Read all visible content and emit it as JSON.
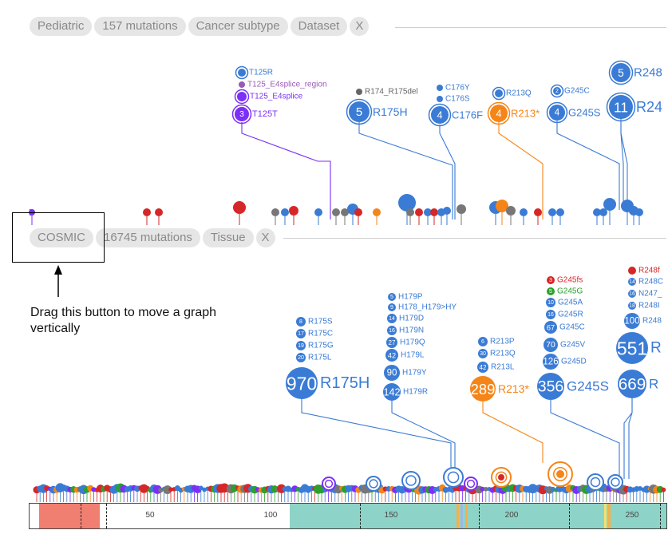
{
  "panel1": {
    "tabs": [
      "Pediatric",
      "157 mutations",
      "Cancer subtype",
      "Dataset",
      "X"
    ],
    "labels": [
      {
        "text": "T125R",
        "color": "#3a7bd5",
        "count": ""
      },
      {
        "text": "T125_E4splice_region",
        "color": "#9b59b6",
        "count": ""
      },
      {
        "text": "T125_E4splice",
        "color": "#7b2ff7",
        "count": ""
      },
      {
        "text": "T125T",
        "color": "#7b2ff7",
        "count": "3"
      },
      {
        "text": "R174_R175del",
        "color": "#666666",
        "count": ""
      },
      {
        "text": "R175H",
        "color": "#3a7bd5",
        "count": "5"
      },
      {
        "text": "C176Y",
        "color": "#3a7bd5",
        "count": ""
      },
      {
        "text": "C176S",
        "color": "#3a7bd5",
        "count": ""
      },
      {
        "text": "C176F",
        "color": "#3a7bd5",
        "count": "4"
      },
      {
        "text": "R213Q",
        "color": "#3a7bd5",
        "count": ""
      },
      {
        "text": "R213*",
        "color": "#f58518",
        "count": "4"
      },
      {
        "text": "G245C",
        "color": "#3a7bd5",
        "count": "2"
      },
      {
        "text": "G245S",
        "color": "#3a7bd5",
        "count": "4"
      },
      {
        "text": "R248",
        "color": "#3a7bd5",
        "count": "5"
      },
      {
        "text": "R24",
        "color": "#3a7bd5",
        "count": "11"
      }
    ]
  },
  "panel2": {
    "tabs": [
      "COSMIC",
      "16745 mutations",
      "Tissue",
      "X"
    ],
    "labels": [
      {
        "text": "R175S",
        "count": "8",
        "color": "#3a7bd5"
      },
      {
        "text": "R175C",
        "count": "17",
        "color": "#3a7bd5"
      },
      {
        "text": "R175G",
        "count": "19",
        "color": "#3a7bd5"
      },
      {
        "text": "R175L",
        "count": "20",
        "color": "#3a7bd5"
      },
      {
        "text": "R175H",
        "count": "970",
        "color": "#3a7bd5"
      },
      {
        "text": "H179P",
        "count": "5",
        "color": "#3a7bd5"
      },
      {
        "text": "H178_H179>HY",
        "count": "9",
        "color": "#3a7bd5"
      },
      {
        "text": "H179D",
        "count": "14",
        "color": "#3a7bd5"
      },
      {
        "text": "H179N",
        "count": "16",
        "color": "#3a7bd5"
      },
      {
        "text": "H179Q",
        "count": "27",
        "color": "#3a7bd5"
      },
      {
        "text": "H179L",
        "count": "42",
        "color": "#3a7bd5"
      },
      {
        "text": "H179Y",
        "count": "90",
        "color": "#3a7bd5"
      },
      {
        "text": "H179R",
        "count": "142",
        "color": "#3a7bd5"
      },
      {
        "text": "R213P",
        "count": "6",
        "color": "#3a7bd5"
      },
      {
        "text": "R213Q",
        "count": "30",
        "color": "#3a7bd5"
      },
      {
        "text": "R213L",
        "count": "42",
        "color": "#3a7bd5"
      },
      {
        "text": "R213*",
        "count": "289",
        "color": "#f58518"
      },
      {
        "text": "G245fs",
        "count": "3",
        "color": "#d62728"
      },
      {
        "text": "G245G",
        "count": "5",
        "color": "#2ca02c"
      },
      {
        "text": "G245A",
        "count": "10",
        "color": "#3a7bd5"
      },
      {
        "text": "G245R",
        "count": "16",
        "color": "#3a7bd5"
      },
      {
        "text": "G245C",
        "count": "67",
        "color": "#3a7bd5"
      },
      {
        "text": "G245V",
        "count": "70",
        "color": "#3a7bd5"
      },
      {
        "text": "G245D",
        "count": "126",
        "color": "#3a7bd5"
      },
      {
        "text": "G245S",
        "count": "356",
        "color": "#3a7bd5"
      },
      {
        "text": "R248f",
        "count": "",
        "color": "#d62728"
      },
      {
        "text": "R248C",
        "count": "14",
        "color": "#3a7bd5"
      },
      {
        "text": "N247_",
        "count": "16",
        "color": "#3a7bd5"
      },
      {
        "text": "R248I",
        "count": "18",
        "color": "#3a7bd5"
      },
      {
        "text": "R248",
        "count": "100",
        "color": "#3a7bd5"
      },
      {
        "text": "R",
        "count": "551",
        "color": "#3a7bd5"
      },
      {
        "text": "R",
        "count": "669",
        "color": "#3a7bd5"
      }
    ]
  },
  "annotation": {
    "text": "Drag this button to move a graph vertically"
  },
  "ruler": {
    "ticks": [
      "50",
      "100",
      "150",
      "200",
      "250"
    ]
  },
  "colors": {
    "blue": "#3a7bd5",
    "orange": "#f58518",
    "purple": "#7b2ff7",
    "red": "#d62728",
    "green": "#2ca02c",
    "gray": "#777777",
    "teal": "#8ed3c7",
    "salmon": "#f07f72"
  }
}
